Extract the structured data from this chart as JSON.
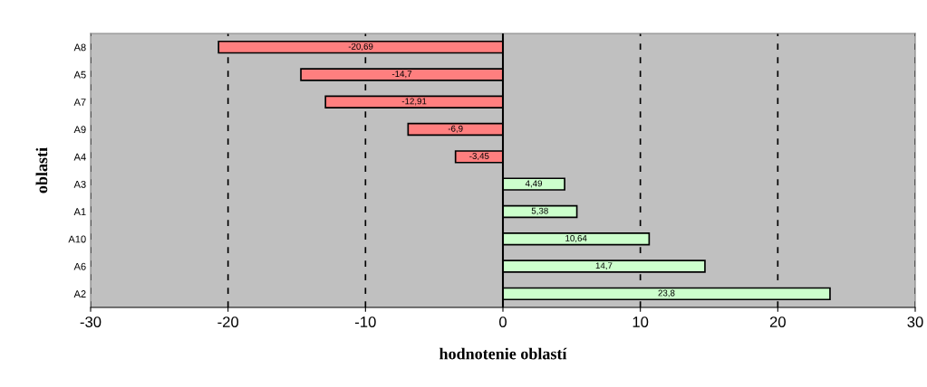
{
  "chart_data": {
    "type": "bar",
    "orientation": "horizontal",
    "xlabel": "hodnotenie oblastí",
    "ylabel": "oblasti",
    "categories": [
      "A8",
      "A5",
      "A7",
      "A9",
      "A4",
      "A3",
      "A1",
      "A10",
      "A6",
      "A2"
    ],
    "values": [
      -20.69,
      -14.7,
      -12.91,
      -6.9,
      -3.45,
      4.49,
      5.38,
      10.64,
      14.7,
      23.8
    ],
    "value_labels": [
      "-20,69",
      "-14,7",
      "-12,91",
      "-6,9",
      "-3,45",
      "4,49",
      "5,38",
      "10,64",
      "14,7",
      "23,8"
    ],
    "colors": [
      "#ff7f7f",
      "#ff7f7f",
      "#ff7f7f",
      "#ff7f7f",
      "#ff7f7f",
      "#ccffcc",
      "#ccffcc",
      "#ccffcc",
      "#ccffcc",
      "#ccffcc"
    ],
    "xlim": [
      -30,
      30
    ],
    "xticks": [
      -30,
      -20,
      -10,
      0,
      10,
      20,
      30
    ],
    "grid": "x",
    "line_style": "dashed"
  }
}
